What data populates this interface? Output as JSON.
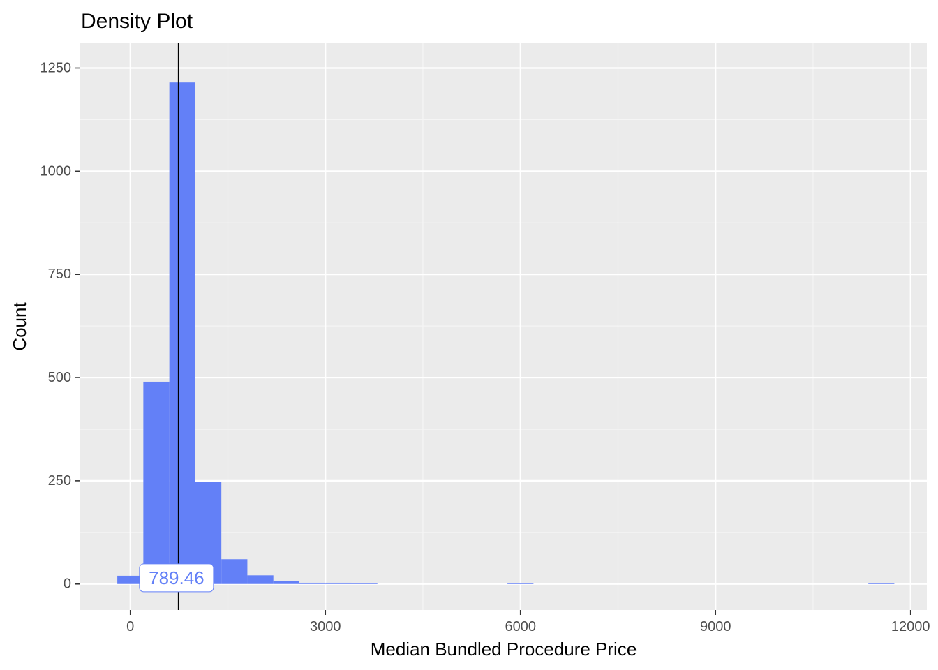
{
  "chart_data": {
    "type": "bar",
    "title": "Density Plot",
    "xlabel": "Median Bundled Procedure Price",
    "ylabel": "Count",
    "xlim": [
      -770,
      12250
    ],
    "ylim": [
      -63,
      1310
    ],
    "x_ticks": [
      0,
      3000,
      6000,
      9000,
      12000
    ],
    "x_tick_labels": [
      "0",
      "3000",
      "6000",
      "9000",
      "12000"
    ],
    "x_minor_ticks": [
      1500,
      4500,
      7500,
      10500
    ],
    "y_ticks": [
      0,
      250,
      500,
      750,
      1000,
      1250
    ],
    "y_tick_labels": [
      "0",
      "250",
      "500",
      "750",
      "1000",
      "1250"
    ],
    "y_minor_ticks": [
      125,
      375,
      625,
      875,
      1125
    ],
    "bin_width": 400,
    "bins": [
      {
        "x_start": -200,
        "x_end": 200,
        "count": 20
      },
      {
        "x_start": 200,
        "x_end": 600,
        "count": 490
      },
      {
        "x_start": 600,
        "x_end": 1000,
        "count": 1215
      },
      {
        "x_start": 1000,
        "x_end": 1400,
        "count": 248
      },
      {
        "x_start": 1400,
        "x_end": 1800,
        "count": 60
      },
      {
        "x_start": 1800,
        "x_end": 2200,
        "count": 21
      },
      {
        "x_start": 2200,
        "x_end": 2600,
        "count": 7
      },
      {
        "x_start": 2600,
        "x_end": 3000,
        "count": 3
      },
      {
        "x_start": 3000,
        "x_end": 3400,
        "count": 3
      },
      {
        "x_start": 3400,
        "x_end": 3800,
        "count": 2
      },
      {
        "x_start": 5800,
        "x_end": 6200,
        "count": 1
      },
      {
        "x_start": 11350,
        "x_end": 11750,
        "count": 1
      }
    ],
    "vline": {
      "x": 740
    },
    "annotation": {
      "text": "789.46",
      "x": 710,
      "y": 15
    },
    "colors": {
      "bar": "#6380f7",
      "panel_background": "#ebebeb",
      "grid_major": "#ffffff",
      "grid_minor": "#f5f5f5",
      "vline": "#000000",
      "annotation_text": "#6380f7",
      "annotation_border": "#6380f7",
      "annotation_fill": "#ffffff"
    }
  }
}
